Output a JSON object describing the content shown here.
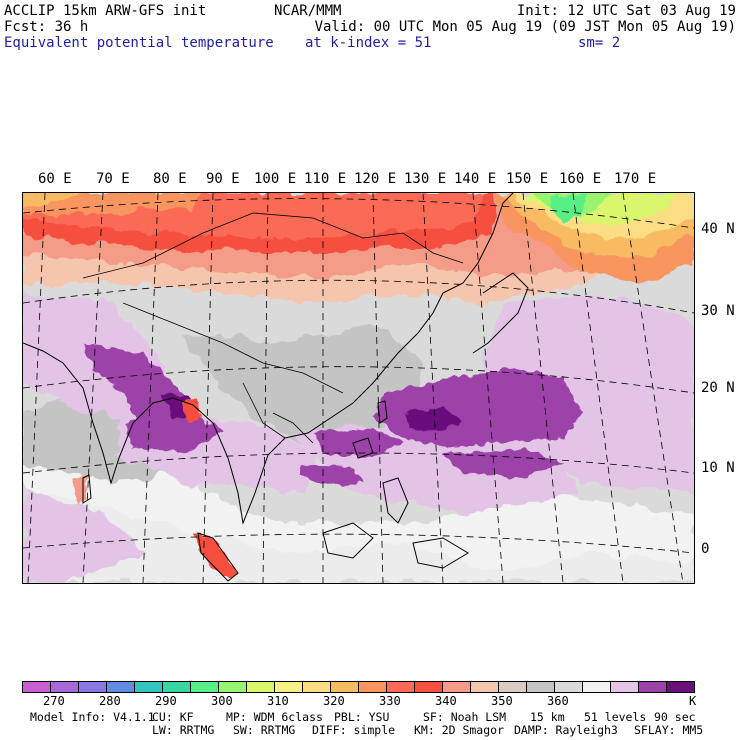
{
  "header": {
    "line1_left": "ACCLIP 15km ARW-GFS init",
    "line1_center": "NCAR/MMM",
    "line1_right": "Init: 12 UTC Sat 03 Aug 19",
    "line2_left": "Fcst:   36 h",
    "line2_right": "Valid: 00 UTC Mon 05 Aug 19 (09 JST Mon 05 Aug 19)",
    "line3_field": "Equivalent potential temperature",
    "line3_level": "at k-index =  51",
    "line3_smooth": "sm= 2"
  },
  "map": {
    "lon_labels": [
      "60 E",
      "70 E",
      "80 E",
      "90 E",
      "100 E",
      "110 E",
      "120 E",
      "130 E",
      "140 E",
      "150 E",
      "160 E",
      "170 E"
    ],
    "lat_labels": [
      "40 N",
      "30 N",
      "20 N",
      "10 N",
      "0"
    ]
  },
  "colorbar": {
    "colors": [
      "#c85fd2",
      "#a768da",
      "#8a78e2",
      "#5f8be0",
      "#33c4c0",
      "#36d7a2",
      "#58ef86",
      "#98f470",
      "#d9f66d",
      "#f8f185",
      "#fbdd83",
      "#f9bb62",
      "#f9965f",
      "#fa6a55",
      "#f65040",
      "#f49c87",
      "#f6c5ad",
      "#d9cbc2",
      "#c4c4c4",
      "#dadada",
      "#f2f2f2",
      "#e3c3e6",
      "#9c42a8",
      "#6b0f7b"
    ],
    "labels": [
      "270",
      "280",
      "290",
      "300",
      "310",
      "320",
      "330",
      "340",
      "350",
      "360"
    ],
    "unit": "K"
  },
  "footer": {
    "line1": [
      "Model Info: V4.1.1",
      "CU: KF",
      "MP: WDM 6class",
      "PBL: YSU",
      "SF: Noah LSM",
      "15 km",
      "51 levels",
      "90 sec"
    ],
    "line2": [
      "LW: RRTMG",
      "SW: RRTMG",
      "DIFF: simple",
      "KM: 2D Smagor",
      "DAMP: Rayleigh3",
      "SFLAY: MM5"
    ]
  }
}
